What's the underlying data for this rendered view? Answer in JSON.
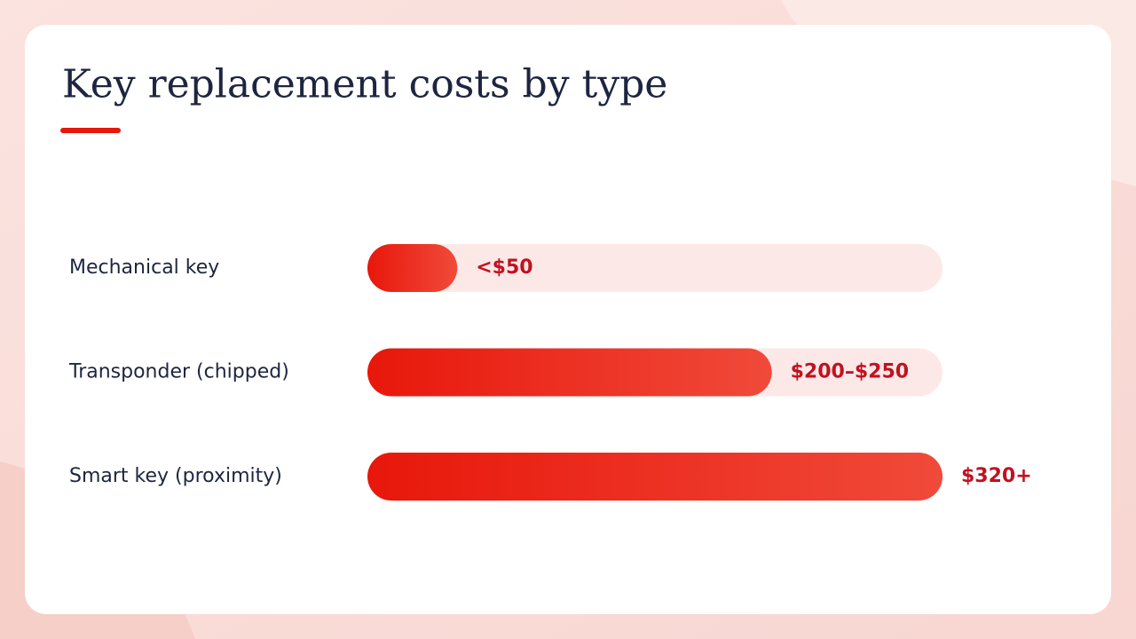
{
  "chart_data": {
    "type": "bar",
    "title": "Key replacement costs by type",
    "categories": [
      "Mechanical key",
      "Transponder (chipped)",
      "Smart key (proximity)"
    ],
    "values": [
      50,
      225,
      320
    ],
    "value_labels": [
      "<$50",
      "$200–$250",
      "$320+"
    ],
    "color": "#e8170b"
  }
}
